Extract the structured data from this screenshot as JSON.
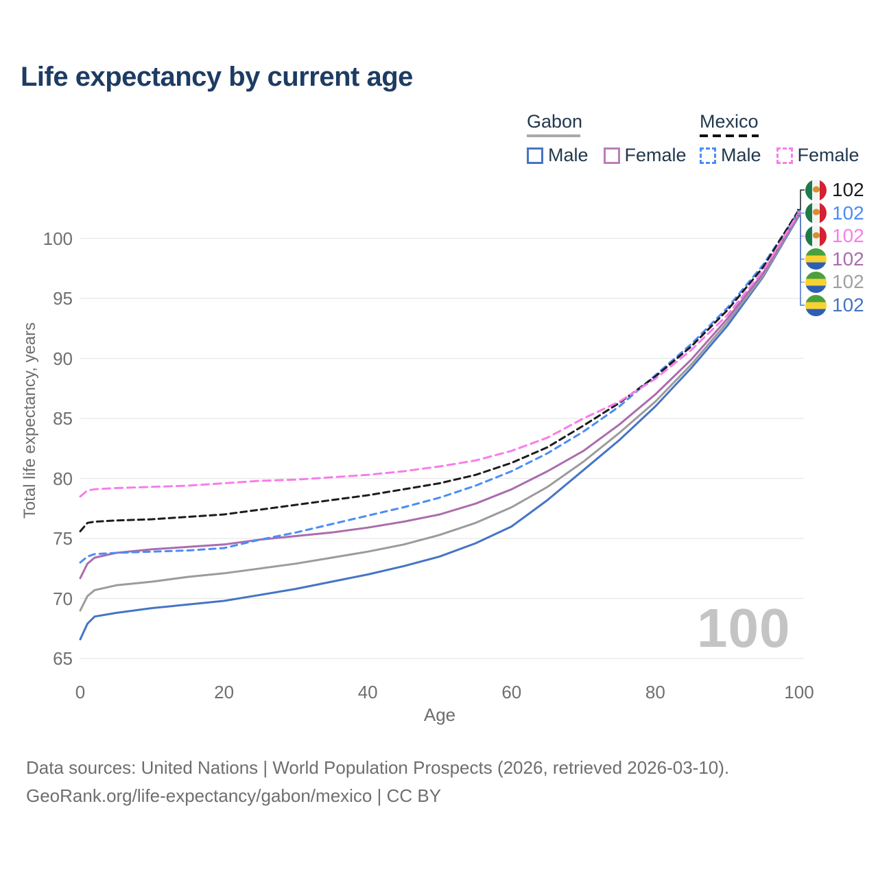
{
  "title": "Life expectancy by current age",
  "xlabel": "Age",
  "ylabel": "Total life expectancy, years",
  "watermark": "100",
  "footer": [
    "Data sources: United Nations | World Population Prospects (2026, retrieved 2026-03-10).",
    "GeoRank.org/life-expectancy/gabon/mexico | CC BY"
  ],
  "colors": {
    "title_text": "#1d3c63",
    "legend_text": "#22384e",
    "axis_text": "#6f6f6f",
    "gridline": "#e7e7e7",
    "watermark": "#c4c4c4",
    "gabon_male": "#4574c5",
    "gabon_total": "#9b9b9b",
    "gabon_female": "#ab6cad",
    "mexico_male": "#4a8cf7",
    "mexico_total": "#1c1c1c",
    "mexico_female": "#f97ce9"
  },
  "legend": {
    "groups": [
      {
        "country": "Gabon",
        "line_style": "solid",
        "underline_color": "#a8a8a8",
        "items": [
          {
            "label": "Male",
            "color": "#4574c5",
            "dash": false
          },
          {
            "label": "Female",
            "color": "#b97eb8",
            "dash": false
          }
        ]
      },
      {
        "country": "Mexico",
        "line_style": "dashed",
        "underline_color": "#111111",
        "items": [
          {
            "label": "Male",
            "color": "#4a8cf7",
            "dash": true
          },
          {
            "label": "Female",
            "color": "#f97ce9",
            "dash": true
          }
        ]
      }
    ]
  },
  "end_labels": [
    {
      "series": "mexico-total",
      "flag": "mexico",
      "value": "102",
      "color": "#1c1c1c"
    },
    {
      "series": "mexico-male",
      "flag": "mexico",
      "value": "102",
      "color": "#4a8cf7"
    },
    {
      "series": "mexico-female",
      "flag": "mexico",
      "value": "102",
      "color": "#f97ce9"
    },
    {
      "series": "gabon-female",
      "flag": "gabon",
      "value": "102",
      "color": "#ab6cad"
    },
    {
      "series": "gabon-total",
      "flag": "gabon",
      "value": "102",
      "color": "#a0a0a0"
    },
    {
      "series": "gabon-male",
      "flag": "gabon",
      "value": "102",
      "color": "#4574c5"
    }
  ],
  "chart_data": {
    "type": "line",
    "title": "Life expectancy by current age",
    "xlabel": "Age",
    "ylabel": "Total life expectancy, years",
    "xlim": [
      0,
      100
    ],
    "ylim": [
      65,
      103
    ],
    "xticks": [
      0,
      20,
      40,
      60,
      80,
      100
    ],
    "yticks": [
      65,
      70,
      75,
      80,
      85,
      90,
      95,
      100
    ],
    "grid": "horizontal-only",
    "legend_position": "top-right",
    "x": [
      0,
      1,
      2,
      5,
      10,
      15,
      20,
      25,
      30,
      35,
      40,
      45,
      50,
      55,
      60,
      65,
      70,
      75,
      80,
      85,
      90,
      95,
      100
    ],
    "series": [
      {
        "id": "gabon-male",
        "name": "Gabon Male",
        "country": "Gabon",
        "sex": "male",
        "color": "#4574c5",
        "dash": false,
        "values": [
          66.6,
          67.9,
          68.5,
          68.8,
          69.2,
          69.5,
          69.8,
          70.3,
          70.8,
          71.4,
          72.0,
          72.7,
          73.5,
          74.6,
          76.0,
          78.2,
          80.7,
          83.2,
          86.0,
          89.2,
          92.7,
          96.8,
          101.9
        ]
      },
      {
        "id": "gabon-total",
        "name": "Gabon",
        "country": "Gabon",
        "sex": "both",
        "color": "#9b9b9b",
        "dash": false,
        "values": [
          69.0,
          70.2,
          70.7,
          71.1,
          71.4,
          71.8,
          72.1,
          72.5,
          72.9,
          73.4,
          73.9,
          74.5,
          75.3,
          76.3,
          77.6,
          79.3,
          81.4,
          83.8,
          86.4,
          89.5,
          93.0,
          96.9,
          102.0
        ]
      },
      {
        "id": "gabon-female",
        "name": "Gabon Female",
        "country": "Gabon",
        "sex": "female",
        "color": "#ab6cad",
        "dash": false,
        "values": [
          71.7,
          72.9,
          73.4,
          73.8,
          74.1,
          74.3,
          74.5,
          74.9,
          75.2,
          75.5,
          75.9,
          76.4,
          77.0,
          77.9,
          79.1,
          80.6,
          82.3,
          84.5,
          87.0,
          89.9,
          93.3,
          97.1,
          102.1
        ]
      },
      {
        "id": "mexico-male",
        "name": "Mexico Male",
        "country": "Mexico",
        "sex": "male",
        "color": "#4a8cf7",
        "dash": true,
        "dash_pattern": "9 7",
        "values": [
          73.0,
          73.5,
          73.7,
          73.8,
          73.9,
          74.0,
          74.2,
          74.9,
          75.5,
          76.2,
          76.9,
          77.6,
          78.4,
          79.4,
          80.6,
          82.1,
          83.9,
          86.0,
          88.6,
          91.2,
          94.2,
          97.8,
          102.3
        ]
      },
      {
        "id": "mexico-total",
        "name": "Mexico",
        "country": "Mexico",
        "sex": "both",
        "color": "#1c1c1c",
        "dash": true,
        "dash_pattern": "9 6",
        "values": [
          75.6,
          76.3,
          76.4,
          76.5,
          76.6,
          76.8,
          77.0,
          77.4,
          77.8,
          78.2,
          78.6,
          79.1,
          79.6,
          80.3,
          81.3,
          82.6,
          84.4,
          86.3,
          88.5,
          91.0,
          94.0,
          97.6,
          102.4
        ]
      },
      {
        "id": "mexico-female",
        "name": "Mexico Female",
        "country": "Mexico",
        "sex": "female",
        "color": "#f97ce9",
        "dash": true,
        "dash_pattern": "11 7",
        "values": [
          78.5,
          79.0,
          79.1,
          79.2,
          79.3,
          79.4,
          79.6,
          79.8,
          79.9,
          80.1,
          80.3,
          80.6,
          81.0,
          81.5,
          82.3,
          83.4,
          85.0,
          86.4,
          88.3,
          90.7,
          93.6,
          97.3,
          102.2
        ]
      }
    ]
  }
}
